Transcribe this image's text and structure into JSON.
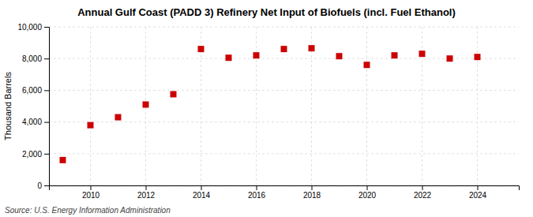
{
  "chart_data": {
    "type": "scatter",
    "title": "Annual Gulf Coast (PADD 3) Refinery Net Input of Biofuels (incl. Fuel Ethanol)",
    "ylabel": "Thousand Barrels",
    "annotations": [
      "Source: U.S. Energy Information Administration"
    ],
    "x": [
      2009,
      2010,
      2011,
      2012,
      2013,
      2014,
      2015,
      2016,
      2017,
      2018,
      2019,
      2020,
      2021,
      2022,
      2023,
      2024
    ],
    "values": [
      1600,
      3800,
      4300,
      5100,
      5750,
      8600,
      8050,
      8200,
      8600,
      8650,
      8150,
      7600,
      8200,
      8300,
      8000,
      8100
    ],
    "color": "#CC0000",
    "marker": "square",
    "xlim": [
      2008.5,
      2025.5
    ],
    "xticks": [
      2010,
      2012,
      2014,
      2016,
      2018,
      2020,
      2022,
      2024
    ],
    "ylim": [
      0,
      10000
    ],
    "yticks": [
      0,
      {
        "value": 2000,
        "label": "2,000"
      },
      {
        "value": 4000,
        "label": "4,000"
      },
      {
        "value": 6000,
        "label": "6,000"
      },
      {
        "value": 8000,
        "label": "8,000"
      },
      {
        "value": 10000,
        "label": "10,000"
      }
    ],
    "grid": true
  }
}
